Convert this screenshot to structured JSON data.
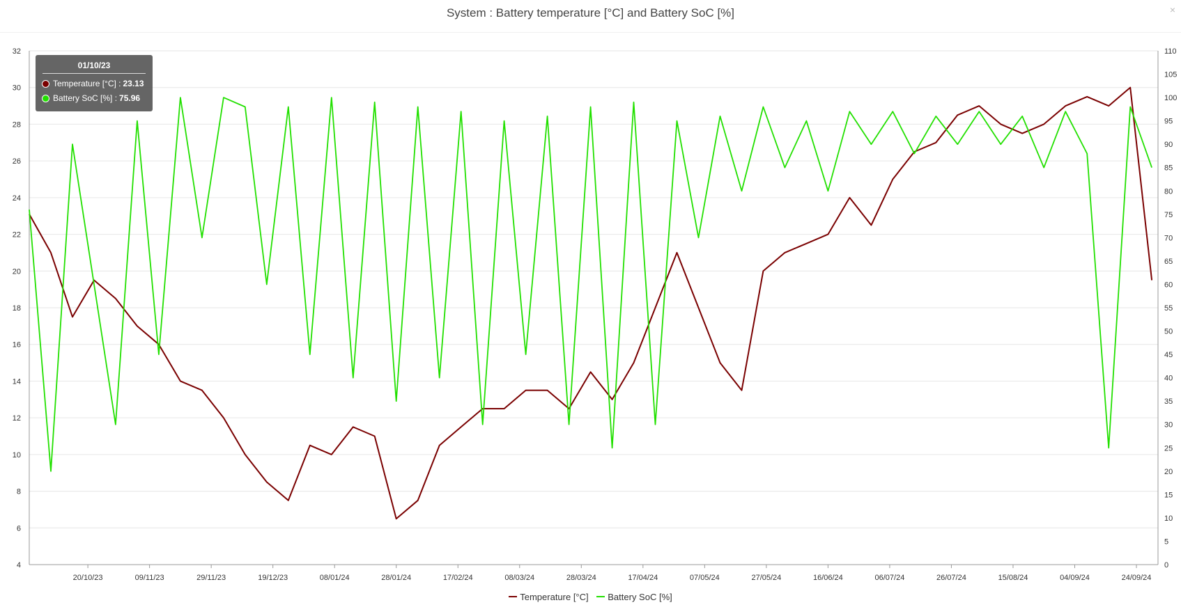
{
  "window": {
    "close_label": "×"
  },
  "chart_data": {
    "type": "line",
    "title": "System : Battery temperature [°C] and Battery SoC [%]",
    "x_ticks": [
      "20/10/23",
      "09/11/23",
      "29/11/23",
      "19/12/23",
      "08/01/24",
      "28/01/24",
      "17/02/24",
      "08/03/24",
      "28/03/24",
      "17/04/24",
      "07/05/24",
      "27/05/24",
      "16/06/24",
      "06/07/24",
      "26/07/24",
      "15/08/24",
      "04/09/24",
      "24/09/24"
    ],
    "x_range": [
      "2023-10-01",
      "2024-10-01"
    ],
    "y_left": {
      "ticks": [
        4,
        6,
        8,
        10,
        12,
        14,
        16,
        18,
        20,
        22,
        24,
        26,
        28,
        30,
        32
      ],
      "ylim": [
        4,
        32
      ]
    },
    "y_right": {
      "ticks": [
        0,
        5,
        10,
        15,
        20,
        25,
        30,
        35,
        40,
        45,
        50,
        55,
        60,
        65,
        70,
        75,
        80,
        85,
        90,
        95,
        100,
        105,
        110
      ],
      "ylim": [
        0,
        110
      ]
    },
    "grid": true,
    "legend_position": "bottom-center",
    "series": [
      {
        "name": "Temperature [°C]",
        "axis": "left",
        "color": "#7a0000",
        "x": [
          "2023-10-01",
          "2023-10-08",
          "2023-10-15",
          "2023-10-22",
          "2023-10-29",
          "2023-11-05",
          "2023-11-12",
          "2023-11-19",
          "2023-11-26",
          "2023-12-03",
          "2023-12-10",
          "2023-12-17",
          "2023-12-24",
          "2023-12-31",
          "2024-01-07",
          "2024-01-14",
          "2024-01-21",
          "2024-01-28",
          "2024-02-04",
          "2024-02-11",
          "2024-02-18",
          "2024-02-25",
          "2024-03-03",
          "2024-03-10",
          "2024-03-17",
          "2024-03-24",
          "2024-03-31",
          "2024-04-07",
          "2024-04-14",
          "2024-04-21",
          "2024-04-28",
          "2024-05-05",
          "2024-05-12",
          "2024-05-19",
          "2024-05-26",
          "2024-06-02",
          "2024-06-09",
          "2024-06-16",
          "2024-06-23",
          "2024-06-30",
          "2024-07-07",
          "2024-07-14",
          "2024-07-21",
          "2024-07-28",
          "2024-08-04",
          "2024-08-11",
          "2024-08-18",
          "2024-08-25",
          "2024-09-01",
          "2024-09-08",
          "2024-09-15",
          "2024-09-22",
          "2024-09-29"
        ],
        "values": [
          23.1,
          21.0,
          17.5,
          19.5,
          18.5,
          17.0,
          16.0,
          14.0,
          13.5,
          12.0,
          10.0,
          8.5,
          7.5,
          10.5,
          10.0,
          11.5,
          11.0,
          6.5,
          7.5,
          10.5,
          11.5,
          12.5,
          12.5,
          13.5,
          13.5,
          12.5,
          14.5,
          13.0,
          15.0,
          18.0,
          21.0,
          18.0,
          15.0,
          13.5,
          20.0,
          21.0,
          21.5,
          22.0,
          24.0,
          22.5,
          25.0,
          26.5,
          27.0,
          28.5,
          29.0,
          28.0,
          27.5,
          28.0,
          29.0,
          29.5,
          29.0,
          30.0,
          19.5
        ]
      },
      {
        "name": "Battery SoC [%]",
        "axis": "right",
        "color": "#22e000",
        "x": [
          "2023-10-01",
          "2023-10-08",
          "2023-10-15",
          "2023-10-22",
          "2023-10-29",
          "2023-11-05",
          "2023-11-12",
          "2023-11-19",
          "2023-11-26",
          "2023-12-03",
          "2023-12-10",
          "2023-12-17",
          "2023-12-24",
          "2023-12-31",
          "2024-01-07",
          "2024-01-14",
          "2024-01-21",
          "2024-01-28",
          "2024-02-04",
          "2024-02-11",
          "2024-02-18",
          "2024-02-25",
          "2024-03-03",
          "2024-03-10",
          "2024-03-17",
          "2024-03-24",
          "2024-03-31",
          "2024-04-07",
          "2024-04-14",
          "2024-04-21",
          "2024-04-28",
          "2024-05-05",
          "2024-05-12",
          "2024-05-19",
          "2024-05-26",
          "2024-06-02",
          "2024-06-09",
          "2024-06-16",
          "2024-06-23",
          "2024-06-30",
          "2024-07-07",
          "2024-07-14",
          "2024-07-21",
          "2024-07-28",
          "2024-08-04",
          "2024-08-11",
          "2024-08-18",
          "2024-08-25",
          "2024-09-01",
          "2024-09-08",
          "2024-09-15",
          "2024-09-22",
          "2024-09-29"
        ],
        "values": [
          76,
          20,
          90,
          60,
          30,
          95,
          45,
          100,
          70,
          100,
          98,
          60,
          98,
          45,
          100,
          40,
          99,
          35,
          98,
          40,
          97,
          30,
          95,
          45,
          96,
          30,
          98,
          25,
          99,
          30,
          95,
          70,
          96,
          80,
          98,
          85,
          95,
          80,
          97,
          90,
          97,
          88,
          96,
          90,
          97,
          90,
          96,
          85,
          97,
          88,
          25,
          98,
          85
        ]
      }
    ]
  },
  "tooltip": {
    "date": "01/10/23",
    "rows": [
      {
        "label": "Temperature [°C] : ",
        "value": "23.13",
        "color": "#7a0000"
      },
      {
        "label": "Battery SoC [%] : ",
        "value": "75.96",
        "color": "#22e000"
      }
    ]
  }
}
